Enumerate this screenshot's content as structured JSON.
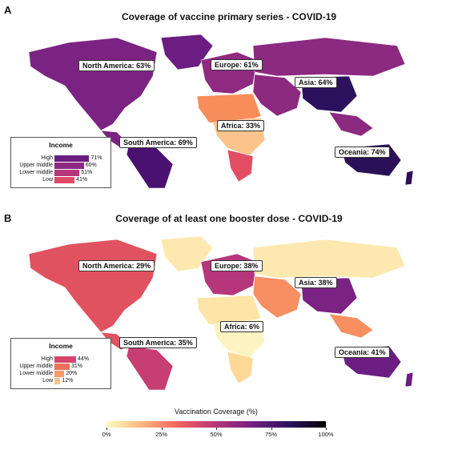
{
  "panels": [
    {
      "letter": "A",
      "title": "Coverage of vaccine primary series - COVID-19",
      "regions": [
        {
          "name": "North America",
          "value": "North America: 63%"
        },
        {
          "name": "Europe",
          "value": "Europe: 61%"
        },
        {
          "name": "Asia",
          "value": "Asia: 64%"
        },
        {
          "name": "Africa",
          "value": "Africa: 33%"
        },
        {
          "name": "South America",
          "value": "South America: 69%"
        },
        {
          "name": "Oceania",
          "value": "Oceania: 74%"
        }
      ],
      "income": {
        "title": "Income",
        "rows": [
          {
            "label": "High",
            "value": 71,
            "text": "71%",
            "color": "#6b1d81"
          },
          {
            "label": "Upper middle",
            "value": 60,
            "text": "60%",
            "color": "#8c2981"
          },
          {
            "label": "Lower middle",
            "value": 51,
            "text": "51%",
            "color": "#b5367a"
          },
          {
            "label": "Low",
            "value": 41,
            "text": "41%",
            "color": "#de4968"
          }
        ]
      },
      "colors": {
        "north_america": "#7b2382",
        "europe": "#8f2a80",
        "asia": "#8c2981",
        "china": "#2c115f",
        "africa_north": "#f78d5a",
        "africa_mid": "#fcc48c",
        "africa_south": "#e34e65",
        "south_america": "#4a1170",
        "oceania": "#2a1157",
        "greenland": "#6b1d81"
      }
    },
    {
      "letter": "B",
      "title": "Coverage of at least one booster dose - COVID-19",
      "regions": [
        {
          "name": "North America",
          "value": "North America: 29%"
        },
        {
          "name": "Europe",
          "value": "Europe: 38%"
        },
        {
          "name": "Asia",
          "value": "Asia: 38%"
        },
        {
          "name": "Africa",
          "value": "Africa: 6%"
        },
        {
          "name": "South America",
          "value": "South America: 35%"
        },
        {
          "name": "Oceania",
          "value": "Oceania: 41%"
        }
      ],
      "income": {
        "title": "Income",
        "rows": [
          {
            "label": "High",
            "value": 44,
            "text": "44%",
            "color": "#d8456c"
          },
          {
            "label": "Upper middle",
            "value": 31,
            "text": "31%",
            "color": "#f1705a"
          },
          {
            "label": "Lower middle",
            "value": 20,
            "text": "20%",
            "color": "#fc9a6a"
          },
          {
            "label": "Low",
            "value": 12,
            "text": "12%",
            "color": "#fdc28c"
          }
        ]
      },
      "colors": {
        "north_america": "#e0525f",
        "europe": "#b5367a",
        "asia": "#f78f62",
        "china": "#7b2382",
        "africa_north": "#fde5a8",
        "africa_mid": "#fcf4c0",
        "africa_south": "#fed896",
        "south_america": "#c73e73",
        "oceania": "#6b1d81",
        "greenland": "#fde9b0"
      }
    }
  ],
  "legend": {
    "title": "Vaccination Coverage (%)",
    "ticks": [
      "0%",
      "25%",
      "50%",
      "75%",
      "100%"
    ]
  }
}
